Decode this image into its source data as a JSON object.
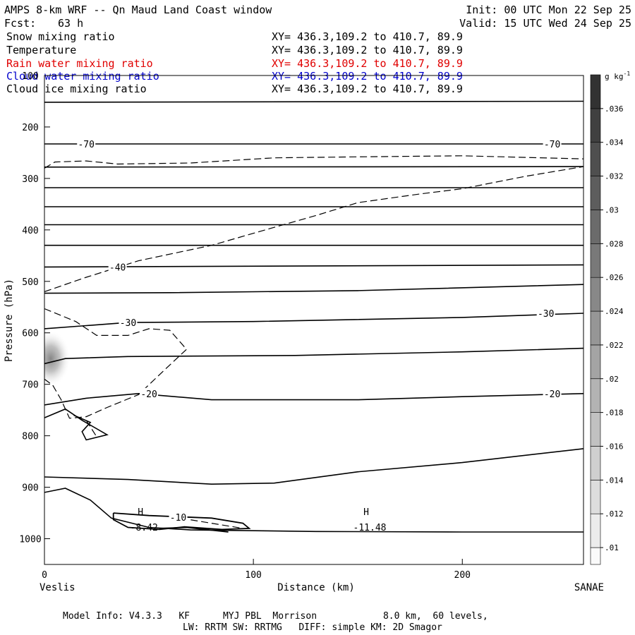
{
  "header": {
    "title_left": "AMPS 8-km WRF -- Qn Maud Land Coast window",
    "title_right": "Init: 00 UTC Mon 22 Sep 25",
    "fcst_label": "Fcst:",
    "fcst_value": "63 h",
    "valid": "Valid: 15 UTC Wed 24 Sep 25"
  },
  "fields": [
    {
      "name": "Snow mixing ratio",
      "xy": "XY= 436.3,109.2 to 410.7, 89.9",
      "color": "#000000"
    },
    {
      "name": "Temperature",
      "xy": "XY= 436.3,109.2 to 410.7, 89.9",
      "color": "#000000"
    },
    {
      "name": "Rain water mixing ratio",
      "xy": "XY= 436.3,109.2 to 410.7, 89.9",
      "color": "#e00000"
    },
    {
      "name": "Cloud water mixing ratio",
      "xy": "XY= 436.3,109.2 to 410.7, 89.9",
      "color": "#0000cc"
    },
    {
      "name": "Cloud ice mixing ratio",
      "xy": "XY= 436.3,109.2 to 410.7, 89.9",
      "color": "#000000"
    }
  ],
  "footer": {
    "line1": "Model Info: V4.3.3   KF      MYJ PBL  Morrison            8.0 km,  60 levels,",
    "line2": "LW: RRTM SW: RRTMG   DIFF: simple KM: 2D Smagor"
  },
  "chart_data": {
    "type": "cross-section",
    "xlabel": "Distance (km)",
    "ylabel": "Pressure (hPa)",
    "xlim": [
      0,
      258
    ],
    "ylim": [
      1050,
      100
    ],
    "x_ticks": [
      0,
      100,
      200
    ],
    "x_tick_labels": [
      "0",
      "100",
      "200"
    ],
    "y_ticks": [
      100,
      200,
      300,
      400,
      500,
      600,
      700,
      800,
      900,
      1000
    ],
    "y_tick_labels": [
      "100",
      "200",
      "300",
      "400",
      "500",
      "600",
      "700",
      "800",
      "900",
      "1000"
    ],
    "left_end_label": "Veslis",
    "right_end_label": "SANAE",
    "colorbar": {
      "unit_label": "g kg",
      "unit_exp": "-1",
      "min": 0.009,
      "max": 0.038,
      "levels": [
        0.01,
        0.012,
        0.014,
        0.016,
        0.018,
        0.02,
        0.022,
        0.024,
        0.026,
        0.028,
        0.03,
        0.032,
        0.034,
        0.036
      ],
      "tick_labels": [
        ".01",
        ".012",
        ".014",
        ".016",
        ".018",
        ".02",
        ".022",
        ".024",
        ".026",
        ".028",
        ".03",
        ".032",
        ".034",
        ".036"
      ]
    },
    "snow_max": {
      "x": 3,
      "p": 650,
      "value": 0.022
    },
    "temperature_contours": [
      {
        "pts": [
          [
            0,
            152
          ],
          [
            258,
            150
          ]
        ]
      },
      {
        "pts": [
          [
            0,
            233
          ],
          [
            258,
            233
          ]
        ],
        "labels": [
          {
            "text": "-70",
            "x": 20,
            "p": 233
          },
          {
            "text": "-70",
            "x": 243,
            "p": 233
          }
        ]
      },
      {
        "pts": [
          [
            0,
            278
          ],
          [
            258,
            277
          ]
        ]
      },
      {
        "pts": [
          [
            0,
            318
          ],
          [
            258,
            318
          ]
        ]
      },
      {
        "pts": [
          [
            0,
            355
          ],
          [
            258,
            355
          ]
        ]
      },
      {
        "pts": [
          [
            0,
            390
          ],
          [
            258,
            390
          ]
        ]
      },
      {
        "pts": [
          [
            0,
            430
          ],
          [
            258,
            430
          ]
        ]
      },
      {
        "pts": [
          [
            0,
            472
          ],
          [
            258,
            468
          ]
        ],
        "labels": [
          {
            "text": "-40",
            "x": 35,
            "p": 472
          }
        ]
      },
      {
        "pts": [
          [
            0,
            523
          ],
          [
            60,
            522
          ],
          [
            150,
            518
          ],
          [
            258,
            506
          ]
        ]
      },
      {
        "pts": [
          [
            0,
            592
          ],
          [
            20,
            586
          ],
          [
            40,
            580
          ],
          [
            100,
            578
          ],
          [
            200,
            570
          ],
          [
            258,
            562
          ]
        ],
        "labels": [
          {
            "text": "-30",
            "x": 40,
            "p": 580
          },
          {
            "text": "-30",
            "x": 240,
            "p": 562
          }
        ]
      },
      {
        "pts": [
          [
            0,
            660
          ],
          [
            10,
            650
          ],
          [
            40,
            646
          ],
          [
            120,
            644
          ],
          [
            200,
            637
          ],
          [
            258,
            630
          ]
        ]
      },
      {
        "pts": [
          [
            0,
            740
          ],
          [
            20,
            727
          ],
          [
            45,
            718
          ],
          [
            80,
            730
          ],
          [
            150,
            730
          ],
          [
            200,
            724
          ],
          [
            258,
            718
          ]
        ],
        "labels": [
          {
            "text": "-20",
            "x": 50,
            "p": 718
          },
          {
            "text": "-20",
            "x": 243,
            "p": 718
          }
        ]
      },
      {
        "pts": [
          [
            0,
            880
          ],
          [
            40,
            885
          ],
          [
            80,
            894
          ],
          [
            110,
            892
          ],
          [
            150,
            870
          ],
          [
            200,
            852
          ],
          [
            258,
            825
          ]
        ]
      },
      {
        "pts": [
          [
            0,
            910
          ],
          [
            10,
            902
          ],
          [
            22,
            925
          ],
          [
            32,
            960
          ],
          [
            50,
            978
          ],
          [
            70,
            983
          ],
          [
            130,
            986
          ],
          [
            200,
            987
          ],
          [
            258,
            987
          ]
        ]
      },
      {
        "pts": [
          [
            0,
            765
          ],
          [
            10,
            748
          ],
          [
            18,
            770
          ],
          [
            30,
            798
          ],
          [
            20,
            808
          ],
          [
            18,
            792
          ],
          [
            22,
            774
          ],
          [
            14,
            760
          ]
        ]
      }
    ],
    "dashed_contours": [
      {
        "pts": [
          [
            0,
            280
          ],
          [
            5,
            268
          ],
          [
            20,
            266
          ],
          [
            35,
            272
          ],
          [
            70,
            270
          ],
          [
            110,
            260
          ],
          [
            150,
            258
          ],
          [
            200,
            256
          ],
          [
            258,
            262
          ]
        ]
      },
      {
        "pts": [
          [
            0,
            520
          ],
          [
            20,
            492
          ],
          [
            45,
            460
          ],
          [
            80,
            430
          ],
          [
            110,
            395
          ],
          [
            130,
            372
          ],
          [
            150,
            347
          ],
          [
            180,
            330
          ],
          [
            200,
            320
          ],
          [
            230,
            296
          ],
          [
            258,
            277
          ]
        ]
      },
      {
        "pts": [
          [
            0,
            553
          ],
          [
            15,
            578
          ],
          [
            25,
            605
          ],
          [
            40,
            605
          ],
          [
            50,
            592
          ],
          [
            60,
            595
          ],
          [
            68,
            632
          ],
          [
            58,
            670
          ],
          [
            45,
            720
          ],
          [
            30,
            745
          ],
          [
            20,
            763
          ],
          [
            12,
            766
          ],
          [
            8,
            730
          ],
          [
            4,
            702
          ],
          [
            0,
            690
          ]
        ]
      },
      {
        "pts": [
          [
            20,
            770
          ],
          [
            25,
            802
          ]
        ]
      },
      {
        "pts": [
          [
            65,
            960
          ],
          [
            95,
            980
          ]
        ],
        "labels": [
          {
            "text": "-10",
            "x": 64,
            "p": 958
          }
        ]
      }
    ],
    "bold_contours": [
      {
        "pts": [
          [
            33,
            950
          ],
          [
            50,
            955
          ],
          [
            80,
            960
          ],
          [
            95,
            970
          ],
          [
            98,
            980
          ],
          [
            85,
            982
          ],
          [
            67,
            977
          ],
          [
            55,
            982
          ],
          [
            40,
            978
          ],
          [
            33,
            963
          ],
          [
            33,
            950
          ]
        ]
      },
      {
        "pts": [
          [
            55,
            980
          ],
          [
            68,
            978
          ],
          [
            88,
            987
          ]
        ]
      }
    ],
    "annotations": [
      {
        "marker": "H",
        "value": "-8.42",
        "x": 46,
        "p": 965
      },
      {
        "marker": "H",
        "value": "-11.48",
        "x": 154,
        "p": 965
      }
    ]
  }
}
